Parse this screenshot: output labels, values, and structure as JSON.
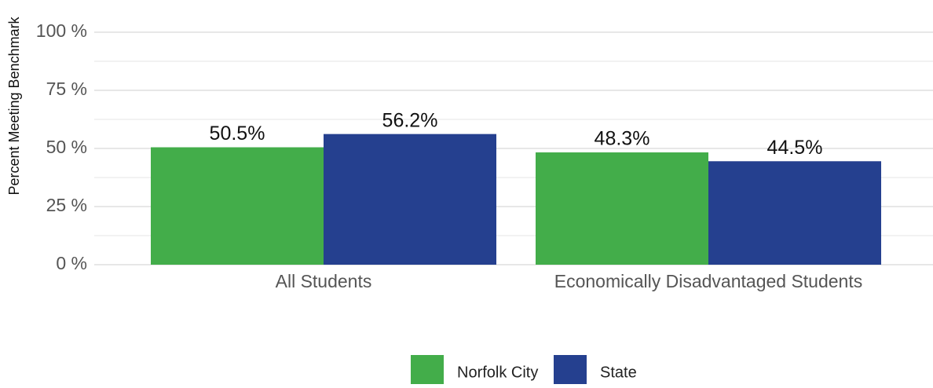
{
  "chart_data": {
    "type": "bar",
    "y_label": "Percent Meeting Benchmark",
    "categories": [
      "All Students",
      "Economically Disadvantaged Students"
    ],
    "series": [
      {
        "name": "Norfolk City",
        "color": "#43ad4a",
        "values": [
          50.5,
          48.3
        ],
        "value_labels": [
          "50.5%",
          "48.3%"
        ]
      },
      {
        "name": "State",
        "color": "#25408f",
        "values": [
          56.2,
          44.5
        ],
        "value_labels": [
          "56.2%",
          "44.5%"
        ]
      }
    ],
    "ylim": [
      0,
      100
    ],
    "yticks": [
      {
        "value": 0,
        "label": "0 %"
      },
      {
        "value": 25,
        "label": "25 %"
      },
      {
        "value": 50,
        "label": "50 %"
      },
      {
        "value": 75,
        "label": "75 %"
      },
      {
        "value": 100,
        "label": "100 %"
      }
    ],
    "yminor": [
      12.5,
      37.5,
      62.5,
      87.5
    ],
    "grid": true,
    "legend": "bottom"
  }
}
